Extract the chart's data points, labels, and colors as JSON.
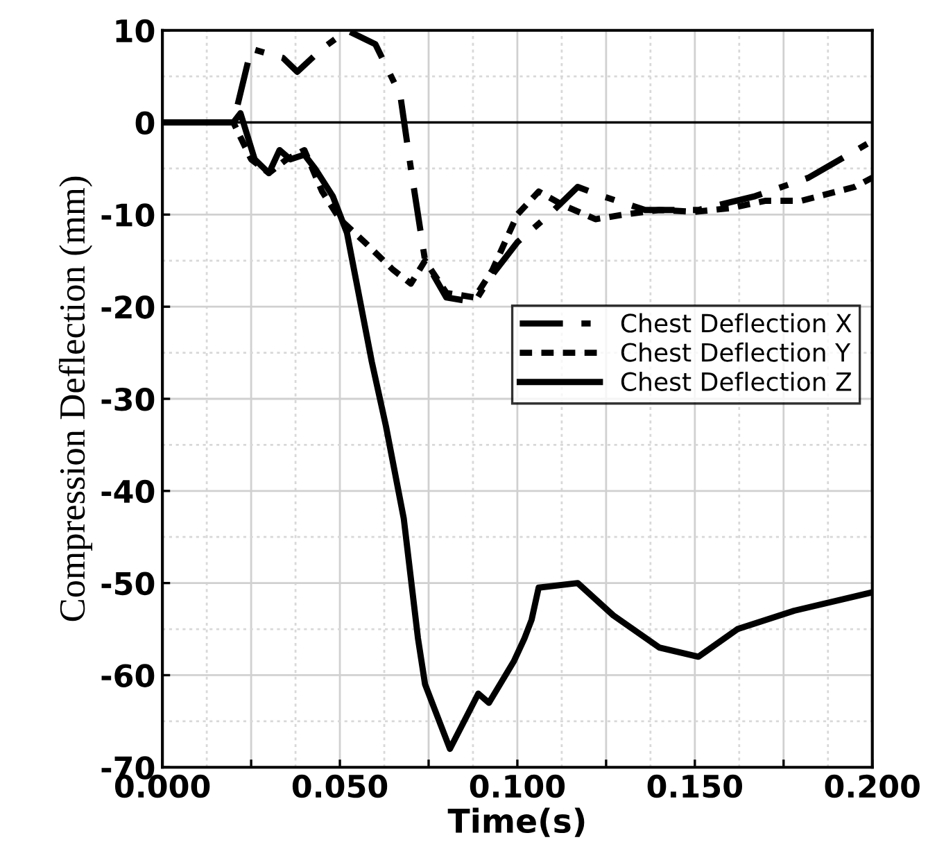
{
  "chart_data": {
    "type": "line",
    "xlabel": "Time(s)",
    "ylabel": "Compression Deflection (mm)",
    "xlim": [
      0,
      0.2
    ],
    "ylim": [
      -70,
      10
    ],
    "xticks": [
      {
        "value": 0,
        "label": "0.000"
      },
      {
        "value": 0.025,
        "label": null
      },
      {
        "value": 0.05,
        "label": "0.050"
      },
      {
        "value": 0.075,
        "label": null
      },
      {
        "value": 0.1,
        "label": "0.100"
      },
      {
        "value": 0.125,
        "label": null
      },
      {
        "value": 0.15,
        "label": "0.150"
      },
      {
        "value": 0.175,
        "label": null
      },
      {
        "value": 0.2,
        "label": "0.200"
      }
    ],
    "yticks": [
      10,
      0,
      -10,
      -20,
      -30,
      -40,
      -50,
      -60,
      -70
    ],
    "grid": true,
    "legend": "right",
    "marker": "none",
    "ref_lines": [
      {
        "axis": "y",
        "value": 0,
        "color": "#000000",
        "line_style": "solid"
      }
    ],
    "series": [
      {
        "name": "Chest Deflection X",
        "color": "#000000",
        "line_style": "dashdot",
        "x": [
          0,
          0.02,
          0.025,
          0.034,
          0.038,
          0.045,
          0.052,
          0.06,
          0.067,
          0.07,
          0.074,
          0.08,
          0.088,
          0.092,
          0.1,
          0.109,
          0.117,
          0.124,
          0.136,
          0.151,
          0.167,
          0.182,
          0.2
        ],
        "values": [
          0,
          0,
          8,
          7,
          5.5,
          8,
          10,
          8.5,
          3,
          -5,
          -15,
          -19,
          -19.5,
          -17,
          -13,
          -10,
          -7,
          -8,
          -9.5,
          -9.5,
          -8,
          -6,
          -2
        ]
      },
      {
        "name": "Chest Deflection Y",
        "color": "#000000",
        "line_style": "dotted",
        "x": [
          0,
          0.02,
          0.025,
          0.03,
          0.035,
          0.04,
          0.045,
          0.05,
          0.057,
          0.065,
          0.07,
          0.074,
          0.08,
          0.088,
          0.093,
          0.1,
          0.106,
          0.113,
          0.122,
          0.13,
          0.14,
          0.15,
          0.16,
          0.17,
          0.18,
          0.195,
          0.2
        ],
        "values": [
          0,
          0,
          -4,
          -5.5,
          -4,
          -3,
          -7.5,
          -10.5,
          -13,
          -16,
          -17.5,
          -15,
          -18.5,
          -19,
          -16,
          -10,
          -7.5,
          -9,
          -10.5,
          -10,
          -9.5,
          -9.7,
          -9.3,
          -8.5,
          -8.5,
          -7,
          -6
        ]
      },
      {
        "name": "Chest Deflection Z",
        "color": "#000000",
        "line_style": "solid",
        "x": [
          0,
          0.02,
          0.022,
          0.026,
          0.03,
          0.033,
          0.036,
          0.04,
          0.043,
          0.048,
          0.052,
          0.059,
          0.063,
          0.068,
          0.072,
          0.074,
          0.081,
          0.087,
          0.089,
          0.092,
          0.099,
          0.102,
          0.104,
          0.106,
          0.117,
          0.127,
          0.14,
          0.151,
          0.162,
          0.178,
          0.2
        ],
        "values": [
          0,
          0,
          1,
          -4,
          -5.5,
          -3,
          -4,
          -3.5,
          -5,
          -8,
          -12,
          -26,
          -33,
          -43,
          -56,
          -61,
          -68,
          -63.5,
          -62,
          -63,
          -58.5,
          -56,
          -54,
          -50.5,
          -50,
          -53.5,
          -57,
          -58,
          -55,
          -53,
          -51
        ]
      }
    ]
  }
}
